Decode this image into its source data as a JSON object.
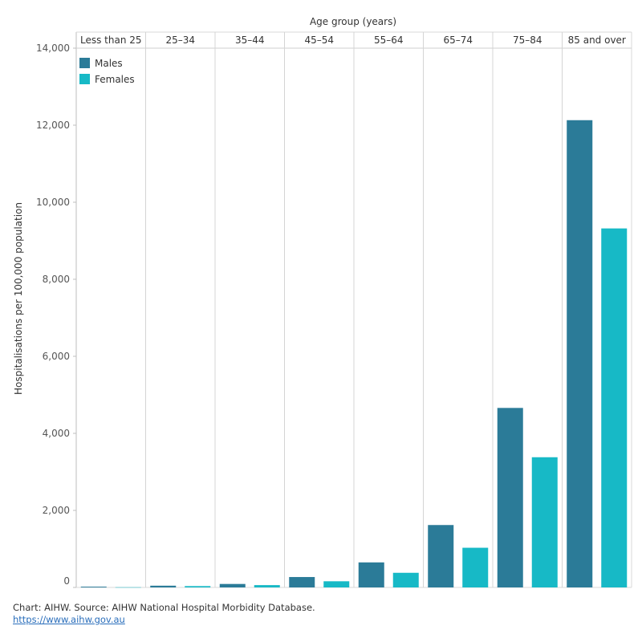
{
  "chart_data": {
    "type": "bar",
    "title": "",
    "top_axis_title": "Age group (years)",
    "ylabel": "Hospitalisations per 100,000 population",
    "xlabel": "",
    "categories": [
      "Less than 25",
      "25–34",
      "35–44",
      "45–54",
      "55–64",
      "65–74",
      "75–84",
      "85 and over"
    ],
    "series": [
      {
        "name": "Males",
        "color": "#2b7b98",
        "values": [
          20,
          45,
          90,
          270,
          650,
          1620,
          4660,
          12130
        ]
      },
      {
        "name": "Females",
        "color": "#17b9c6",
        "values": [
          5,
          35,
          60,
          160,
          380,
          1030,
          3380,
          9320
        ]
      }
    ],
    "ylim": [
      0,
      14000
    ],
    "yticks": [
      0,
      2000,
      4000,
      6000,
      8000,
      10000,
      12000,
      14000
    ],
    "ytick_labels": [
      "0",
      "2,000",
      "4,000",
      "6,000",
      "8,000",
      "10,000",
      "12,000",
      "14,000"
    ],
    "legend_position": "top-left",
    "grid": "vertical category dividers"
  },
  "footer": {
    "source": "Chart: AIHW. Source: AIHW National Hospital Morbidity Database.",
    "link": "https://www.aihw.gov.au"
  }
}
